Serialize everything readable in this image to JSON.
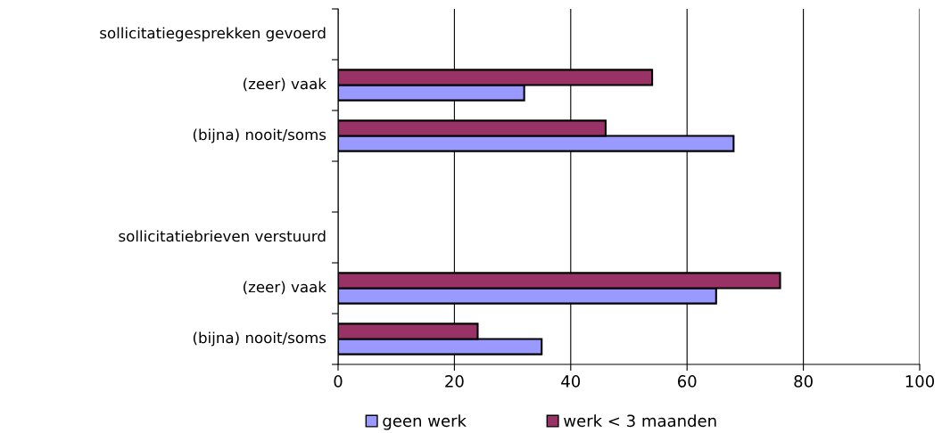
{
  "chart_data": {
    "type": "bar",
    "orientation": "horizontal",
    "categories": [
      "sollicitatiegesprekken gevoerd",
      "(zeer) vaak",
      "(bijna) nooit/soms",
      null,
      "sollicitatiebrieven verstuurd",
      "(zeer) vaak",
      "(bijna) nooit/soms"
    ],
    "series": [
      {
        "name": "geen werk",
        "color": "#9999ff",
        "values": [
          null,
          32,
          68,
          null,
          null,
          65,
          35
        ]
      },
      {
        "name": "werk < 3 maanden",
        "color": "#993366",
        "values": [
          null,
          54,
          46,
          null,
          null,
          76,
          24
        ]
      }
    ],
    "xlim": [
      0,
      100
    ],
    "xticks": [
      0,
      20,
      40,
      60,
      80,
      100
    ],
    "grid": "x",
    "legend": "bottom"
  }
}
